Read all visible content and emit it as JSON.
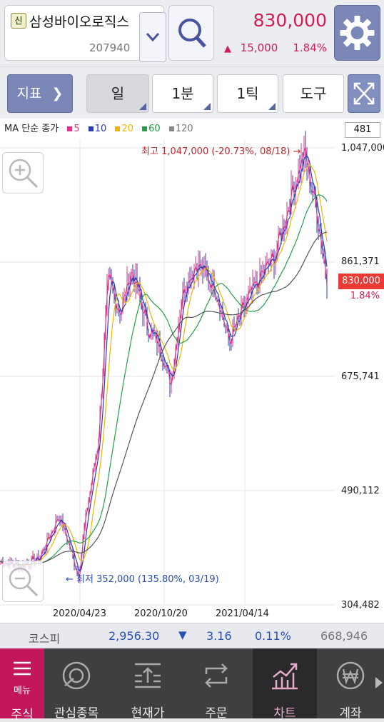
{
  "header": {
    "badge": "신",
    "stock_name": "삼성바이오로직스",
    "stock_code": "207940",
    "price": "830,000",
    "change_arrow": "▲",
    "change_amount": "15,000",
    "change_percent": "1.84%"
  },
  "toolbar": {
    "indicator_label": "지표",
    "period_day": "일",
    "period_minute": "1분",
    "period_tick": "1틱",
    "tools_label": "도구"
  },
  "chart": {
    "ma_title": "MA 단순 종가",
    "ma_periods": [
      "5",
      "10",
      "20",
      "60",
      "120"
    ],
    "ma_colors": [
      "#e0348a",
      "#2a3fb0",
      "#f0b400",
      "#23a04a",
      "#888888"
    ],
    "count_box": "481",
    "y_labels": [
      "1,047,000",
      "861,371",
      "675,741",
      "490,112",
      "304,482"
    ],
    "x_labels": [
      "2020/04/23",
      "2020/10/20",
      "2021/04/14"
    ],
    "current_price_tag": "830,000",
    "current_pct_tag": "1.84%",
    "high_note": "최고 1,047,000 (-20.73%, 08/18) →",
    "low_note": "← 최저 352,000 (135.80%, 03/19)"
  },
  "chart_data": {
    "type": "line",
    "x": [
      "2020/04/23",
      "2020/10/20",
      "2021/04/14"
    ],
    "ylim": [
      304482,
      1047000
    ],
    "high": 1047000,
    "low": 352000,
    "last": 830000
  },
  "index_bar": {
    "name": "코스피",
    "value": "2,956.30",
    "arrow": "▼",
    "change": "3.16",
    "percent": "0.11%",
    "volume": "668,946"
  },
  "bottom_nav": {
    "menu_label": "메뉴",
    "items": [
      "주식",
      "관심종목",
      "현재가",
      "주문",
      "차트",
      "계좌"
    ]
  }
}
